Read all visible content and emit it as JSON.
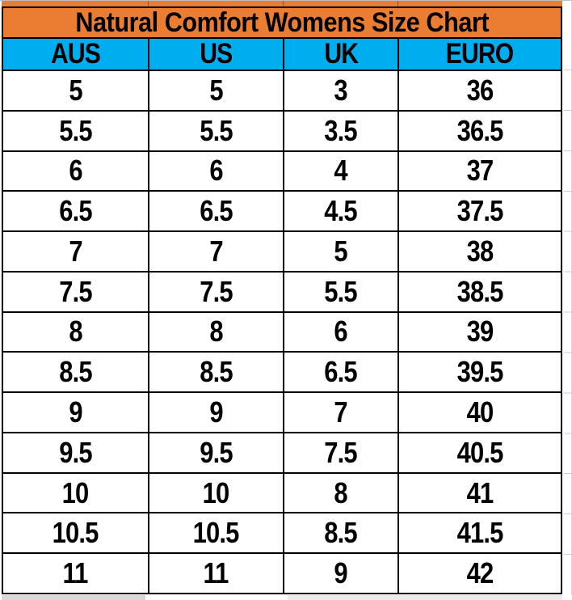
{
  "title": "Natural Comfort Womens Size Chart",
  "colors": {
    "title_bg": "#EA7D31",
    "header_bg": "#00ADEE",
    "grid_border": "#000000",
    "faint_gridline": "#C0C0C0"
  },
  "chart_data": {
    "type": "table",
    "title": "Natural Comfort Womens Size Chart",
    "columns": [
      "AUS",
      "US",
      "UK",
      "EURO"
    ],
    "rows": [
      [
        "5",
        "5",
        "3",
        "36"
      ],
      [
        "5.5",
        "5.5",
        "3.5",
        "36.5"
      ],
      [
        "6",
        "6",
        "4",
        "37"
      ],
      [
        "6.5",
        "6.5",
        "4.5",
        "37.5"
      ],
      [
        "7",
        "7",
        "5",
        "38"
      ],
      [
        "7.5",
        "7.5",
        "5.5",
        "38.5"
      ],
      [
        "8",
        "8",
        "6",
        "39"
      ],
      [
        "8.5",
        "8.5",
        "6.5",
        "39.5"
      ],
      [
        "9",
        "9",
        "7",
        "40"
      ],
      [
        "9.5",
        "9.5",
        "7.5",
        "40.5"
      ],
      [
        "10",
        "10",
        "8",
        "41"
      ],
      [
        "10.5",
        "10.5",
        "8.5",
        "41.5"
      ],
      [
        "11",
        "11",
        "9",
        "42"
      ]
    ]
  }
}
